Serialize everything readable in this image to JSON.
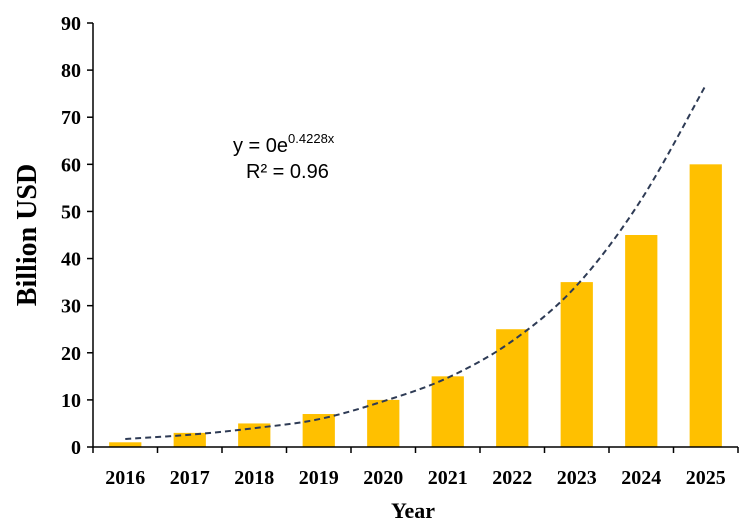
{
  "chart_data": {
    "type": "bar",
    "title": "",
    "xlabel": "Year",
    "ylabel": "Billion USD",
    "categories": [
      "2016",
      "2017",
      "2018",
      "2019",
      "2020",
      "2021",
      "2022",
      "2023",
      "2024",
      "2025"
    ],
    "values": [
      1,
      3,
      5,
      7,
      10,
      15,
      25,
      35,
      45,
      60
    ],
    "ylim": [
      0,
      90
    ],
    "yticks": [
      "0",
      "10",
      "20",
      "30",
      "40",
      "50",
      "60",
      "70",
      "80",
      "90"
    ],
    "grid": false,
    "legend": "none",
    "colors": {
      "bar": "#FFC000",
      "trendline": "#2E3B55",
      "axis": "#000000"
    },
    "trendline": {
      "type": "exponential",
      "style": "dashed",
      "equation_prefix": "y = 0e",
      "equation_exponent": "0.4228x",
      "r_squared_label": "R² = 0.96",
      "points": [
        1.7,
        2.6,
        4.0,
        5.9,
        9.7,
        14.7,
        22.5,
        34.3,
        52.5,
        76.8
      ]
    }
  }
}
